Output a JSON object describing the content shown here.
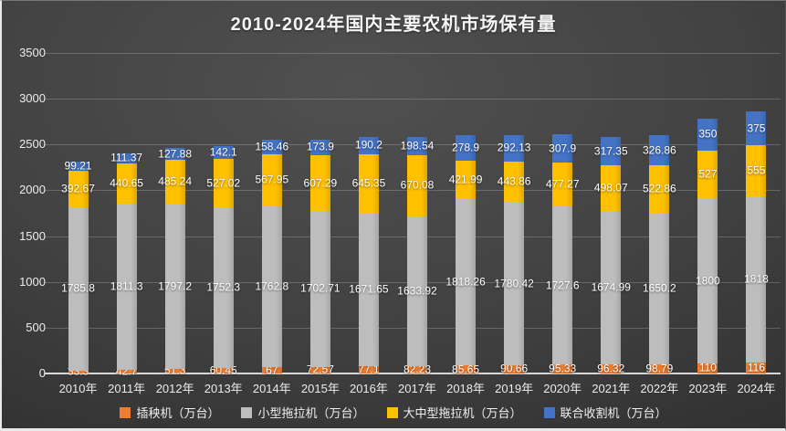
{
  "chart_data": {
    "type": "bar",
    "stacked": true,
    "title": "2010-2024年国内主要农机市场保有量",
    "categories": [
      "2010年",
      "2011年",
      "2012年",
      "2013年",
      "2014年",
      "2015年",
      "2016年",
      "2017年",
      "2018年",
      "2019年",
      "2020年",
      "2021年",
      "2022年",
      "2023年",
      "2024年"
    ],
    "series": [
      {
        "name": "插秧机（万台）",
        "color": "#ED7D31",
        "values": [
          33.3,
          42.7,
          51.3,
          60.45,
          67,
          72.57,
          77.1,
          82.23,
          85.65,
          90.66,
          95.33,
          96.32,
          98.79,
          110,
          116
        ]
      },
      {
        "name": "小型拖拉机（万台）",
        "color": "#BDBDBD",
        "values": [
          1785.8,
          1811.3,
          1797.2,
          1752.3,
          1762.8,
          1702.71,
          1671.65,
          1633.92,
          1818.26,
          1780.42,
          1727.6,
          1674.99,
          1650.2,
          1800,
          1818
        ]
      },
      {
        "name": "大中型拖拉机（万台）",
        "color": "#FFC000",
        "values": [
          392.67,
          440.65,
          485.24,
          527.02,
          567.95,
          607.29,
          645.35,
          670.08,
          421.99,
          443.86,
          477.27,
          498.07,
          522.86,
          527,
          555
        ]
      },
      {
        "name": "联合收割机（万台）",
        "color": "#4472C4",
        "values": [
          99.21,
          111.37,
          127.88,
          142.1,
          158.46,
          173.9,
          190.2,
          198.54,
          278.9,
          292.13,
          307.9,
          317.35,
          326.86,
          350,
          375
        ]
      }
    ],
    "ylim": [
      0,
      3500
    ],
    "ytick_step": 500,
    "grid": true,
    "legend_position": "bottom",
    "background": "dark-gradient",
    "text_color": "#ffffff"
  }
}
